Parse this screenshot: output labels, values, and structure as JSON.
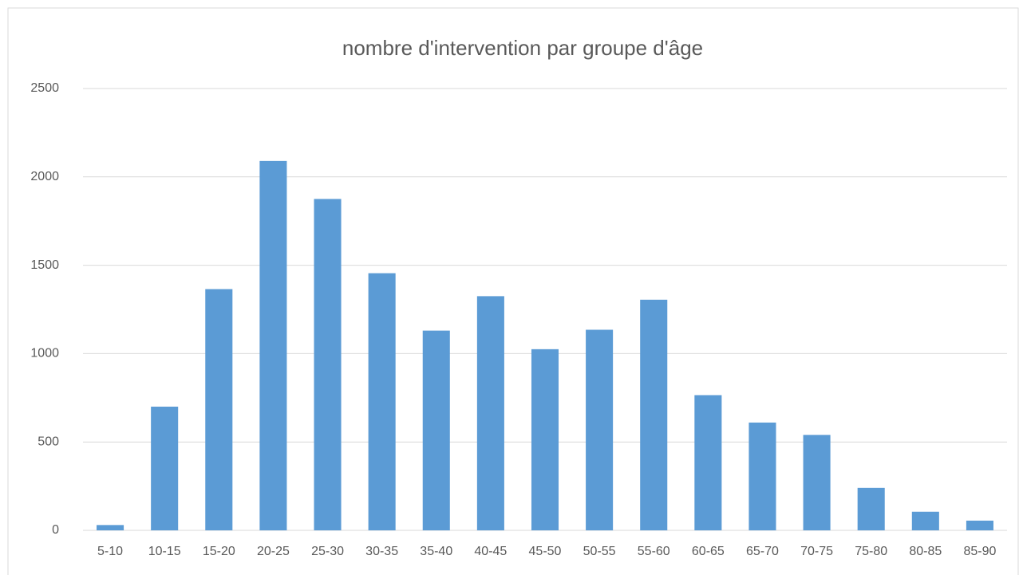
{
  "chart_data": {
    "type": "bar",
    "title": "nombre d'intervention par groupe d'âge",
    "categories": [
      "5-10",
      "10-15",
      "15-20",
      "20-25",
      "25-30",
      "30-35",
      "35-40",
      "40-45",
      "45-50",
      "50-55",
      "55-60",
      "60-65",
      "65-70",
      "70-75",
      "75-80",
      "80-85",
      "85-90"
    ],
    "values": [
      30,
      700,
      1365,
      2090,
      1875,
      1455,
      1130,
      1325,
      1025,
      1135,
      1305,
      765,
      610,
      540,
      240,
      105,
      55
    ],
    "color": "#5b9bd5",
    "ylim": [
      0,
      2500
    ],
    "yticks": [
      0,
      500,
      1000,
      1500,
      2000,
      2500
    ],
    "grid": true
  }
}
